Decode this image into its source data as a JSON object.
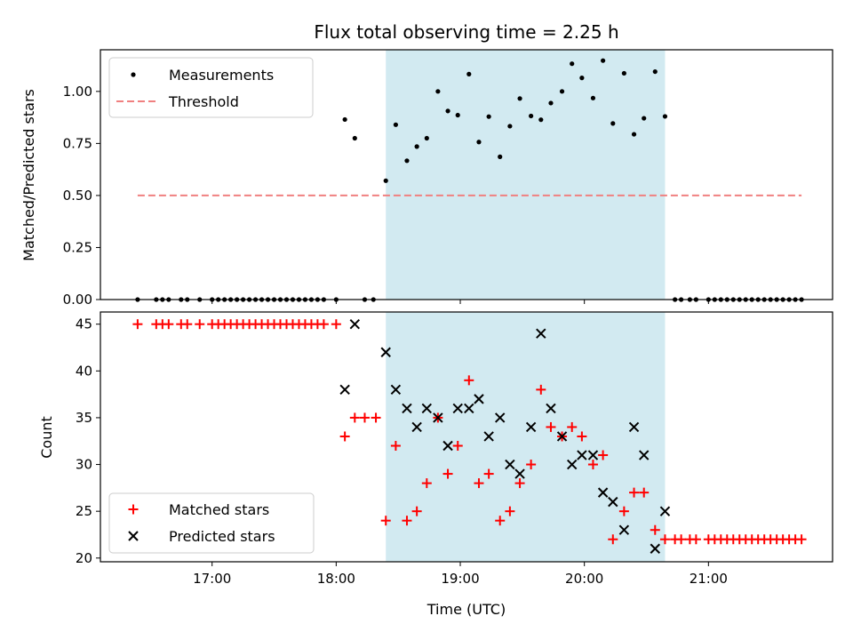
{
  "chart_data": {
    "type": "scatter",
    "title": "Flux total observing time = 2.25 h",
    "xlabel": "Time (UTC)",
    "x_unit": "hours UTC",
    "x_range": [
      16.1,
      22.0
    ],
    "x_ticks": [
      17,
      18,
      19,
      20,
      21
    ],
    "x_tick_labels": [
      "17:00",
      "18:00",
      "19:00",
      "20:00",
      "21:00"
    ],
    "highlight_span": [
      18.4,
      20.65
    ],
    "highlight_color": "#add8e6",
    "panels": [
      {
        "ylabel": "Matched/Predicted stars",
        "ylim": [
          0,
          1.2
        ],
        "y_ticks": [
          0.0,
          0.25,
          0.5,
          0.75,
          1.0
        ],
        "y_tick_labels": [
          "0.00",
          "0.25",
          "0.50",
          "0.75",
          "1.00"
        ],
        "legend_position": "top-left",
        "series": [
          {
            "name": "Measurements",
            "kind": "dot",
            "color": "#000000",
            "x": [
              16.4,
              16.55,
              16.6,
              16.65,
              16.75,
              16.8,
              16.9,
              17.0,
              17.05,
              17.1,
              17.15,
              17.2,
              17.25,
              17.3,
              17.35,
              17.4,
              17.45,
              17.5,
              17.55,
              17.6,
              17.65,
              17.7,
              17.75,
              17.8,
              17.85,
              17.9,
              18.0,
              18.07,
              18.15,
              18.23,
              18.3,
              18.4,
              18.48,
              18.57,
              18.65,
              18.73,
              18.82,
              18.9,
              18.98,
              19.07,
              19.15,
              19.23,
              19.32,
              19.4,
              19.48,
              19.57,
              19.65,
              19.73,
              19.82,
              19.9,
              19.98,
              20.07,
              20.15,
              20.23,
              20.32,
              20.4,
              20.48,
              20.57,
              20.65,
              20.73,
              20.78,
              20.85,
              20.9,
              21.0,
              21.05,
              21.1,
              21.15,
              21.2,
              21.25,
              21.3,
              21.35,
              21.4,
              21.45,
              21.5,
              21.55,
              21.6,
              21.65,
              21.7,
              21.75
            ],
            "y": [
              0,
              0,
              0,
              0,
              0,
              0,
              0,
              0,
              0,
              0,
              0,
              0,
              0,
              0,
              0,
              0,
              0,
              0,
              0,
              0,
              0,
              0,
              0,
              0,
              0,
              0,
              0,
              0.865,
              0.775,
              0,
              0,
              0.571,
              0.84,
              0.667,
              0.735,
              0.775,
              1.0,
              0.906,
              0.886,
              1.083,
              0.757,
              0.879,
              0.686,
              0.833,
              0.966,
              0.882,
              0.864,
              0.944,
              1.0,
              1.133,
              1.065,
              0.968,
              1.148,
              0.846,
              1.087,
              0.794,
              0.871,
              1.095,
              0.88,
              0,
              0,
              0,
              0,
              0,
              0,
              0,
              0,
              0,
              0,
              0,
              0,
              0,
              0,
              0,
              0,
              0,
              0,
              0,
              0
            ]
          },
          {
            "name": "Threshold",
            "kind": "dashed-line",
            "color": "#f08080",
            "x": [
              16.4,
              21.75
            ],
            "y": [
              0.5,
              0.5
            ]
          }
        ]
      },
      {
        "ylabel": "Count",
        "ylim": [
          19.6,
          46.3
        ],
        "y_ticks": [
          20,
          25,
          30,
          35,
          40,
          45
        ],
        "y_tick_labels": [
          "20",
          "25",
          "30",
          "35",
          "40",
          "45"
        ],
        "legend_position": "bottom-left",
        "series": [
          {
            "name": "Matched stars",
            "kind": "plus",
            "color": "#ff0000",
            "x": [
              16.4,
              16.55,
              16.6,
              16.65,
              16.75,
              16.8,
              16.9,
              17.0,
              17.05,
              17.1,
              17.15,
              17.2,
              17.25,
              17.3,
              17.35,
              17.4,
              17.45,
              17.5,
              17.55,
              17.6,
              17.65,
              17.7,
              17.75,
              17.8,
              17.85,
              17.9,
              18.0,
              18.07,
              18.15,
              18.23,
              18.32,
              18.4,
              18.48,
              18.57,
              18.65,
              18.73,
              18.82,
              18.9,
              18.98,
              19.07,
              19.15,
              19.23,
              19.32,
              19.4,
              19.48,
              19.57,
              19.65,
              19.73,
              19.82,
              19.9,
              19.98,
              20.07,
              20.15,
              20.23,
              20.32,
              20.4,
              20.48,
              20.57,
              20.65,
              20.73,
              20.78,
              20.85,
              20.9,
              21.0,
              21.05,
              21.1,
              21.15,
              21.2,
              21.25,
              21.3,
              21.35,
              21.4,
              21.45,
              21.5,
              21.55,
              21.6,
              21.65,
              21.7,
              21.75
            ],
            "y": [
              45,
              45,
              45,
              45,
              45,
              45,
              45,
              45,
              45,
              45,
              45,
              45,
              45,
              45,
              45,
              45,
              45,
              45,
              45,
              45,
              45,
              45,
              45,
              45,
              45,
              45,
              45,
              33,
              35,
              35,
              35,
              24,
              32,
              24,
              25,
              28,
              35,
              29,
              32,
              39,
              28,
              29,
              24,
              25,
              28,
              30,
              38,
              34,
              33,
              34,
              33,
              30,
              31,
              22,
              25,
              27,
              27,
              23,
              22,
              22,
              22,
              22,
              22,
              22,
              22,
              22,
              22,
              22,
              22,
              22,
              22,
              22,
              22,
              22,
              22,
              22,
              22,
              22,
              22
            ]
          },
          {
            "name": "Predicted stars",
            "kind": "x",
            "color": "#000000",
            "x": [
              18.07,
              18.15,
              18.4,
              18.48,
              18.57,
              18.65,
              18.73,
              18.82,
              18.9,
              18.98,
              19.07,
              19.15,
              19.23,
              19.32,
              19.4,
              19.48,
              19.57,
              19.65,
              19.73,
              19.82,
              19.9,
              19.98,
              20.07,
              20.15,
              20.23,
              20.32,
              20.4,
              20.48,
              20.57,
              20.65
            ],
            "y": [
              38,
              45,
              42,
              38,
              36,
              34,
              36,
              35,
              32,
              36,
              36,
              37,
              33,
              35,
              30,
              29,
              34,
              44,
              36,
              33,
              30,
              31,
              31,
              27,
              26,
              23,
              34,
              31,
              21,
              25
            ]
          }
        ]
      }
    ]
  }
}
